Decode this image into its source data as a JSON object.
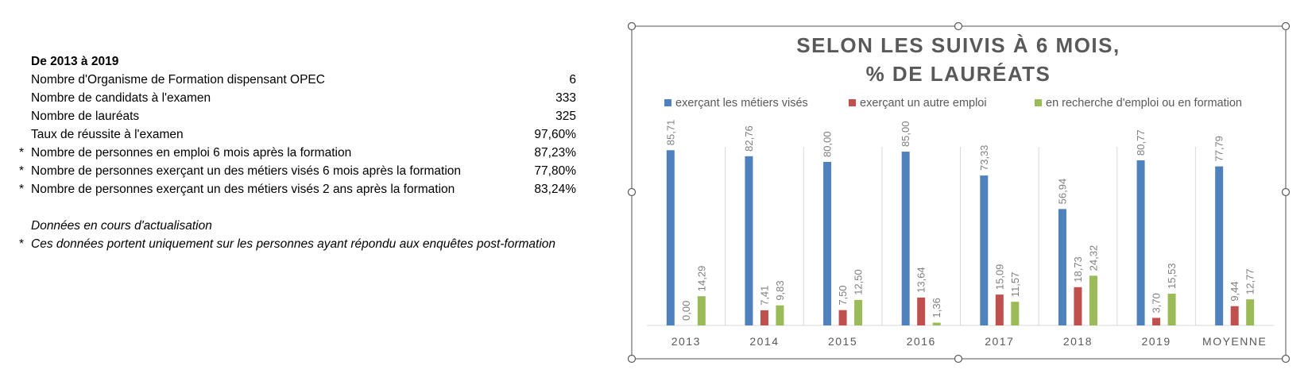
{
  "stats": {
    "heading": "De 2013 à 2019",
    "rows": [
      {
        "star": "",
        "label": "Nombre d'Organisme de Formation dispensant OPEC",
        "value": "6"
      },
      {
        "star": "",
        "label": "Nombre de candidats à l'examen",
        "value": "333"
      },
      {
        "star": "",
        "label": "Nombre de lauréats",
        "value": "325"
      },
      {
        "star": "",
        "label": "Taux de réussite à l'examen",
        "value": "97,60%"
      },
      {
        "star": "*",
        "label": "Nombre de personnes en emploi 6 mois après la formation",
        "value": "87,23%"
      },
      {
        "star": "*",
        "label": "Nombre de personnes exerçant un des métiers visés 6 mois après la formation",
        "value": "77,80%"
      },
      {
        "star": "*",
        "label": "Nombre de personnes exerçant un des métiers visés 2 ans après la formation",
        "value": "83,24%"
      }
    ],
    "note1": "Données en cours d'actualisation",
    "note2_star": "*",
    "note2": "Ces données portent uniquement sur les personnes ayant répondu aux enquêtes post-formation"
  },
  "chart_data": {
    "type": "bar",
    "title_line1": "SELON LES SUIVIS À 6 MOIS,",
    "title_line2": "% DE LAURÉATS",
    "categories": [
      "2013",
      "2014",
      "2015",
      "2016",
      "2017",
      "2018",
      "2019",
      "MOYENNE"
    ],
    "series": [
      {
        "name": "exerçant les métiers visés",
        "color": "#4f81bd",
        "values": [
          85.71,
          82.76,
          80.0,
          85.0,
          73.33,
          56.94,
          80.77,
          77.79
        ],
        "labels": [
          "85,71",
          "82,76",
          "80,00",
          "85,00",
          "73,33",
          "56,94",
          "80,77",
          "77,79"
        ]
      },
      {
        "name": "exerçant un autre emploi",
        "color": "#c0504d",
        "values": [
          0.0,
          7.41,
          7.5,
          13.64,
          15.09,
          18.73,
          3.7,
          9.44
        ],
        "labels": [
          "0,00",
          "7,41",
          "7,50",
          "13,64",
          "15,09",
          "18,73",
          "3,70",
          "9,44"
        ]
      },
      {
        "name": "en recherche d'emploi ou en formation",
        "color": "#9bbb59",
        "values": [
          14.29,
          9.83,
          12.5,
          1.36,
          11.57,
          24.32,
          15.53,
          12.77
        ],
        "labels": [
          "14,29",
          "9,83",
          "12,50",
          "1,36",
          "11,57",
          "24,32",
          "15,53",
          "12,77"
        ]
      }
    ],
    "ylim": [
      0,
      100
    ],
    "legend_position": "top",
    "grid": "vertical",
    "data_labels": "rotated"
  }
}
